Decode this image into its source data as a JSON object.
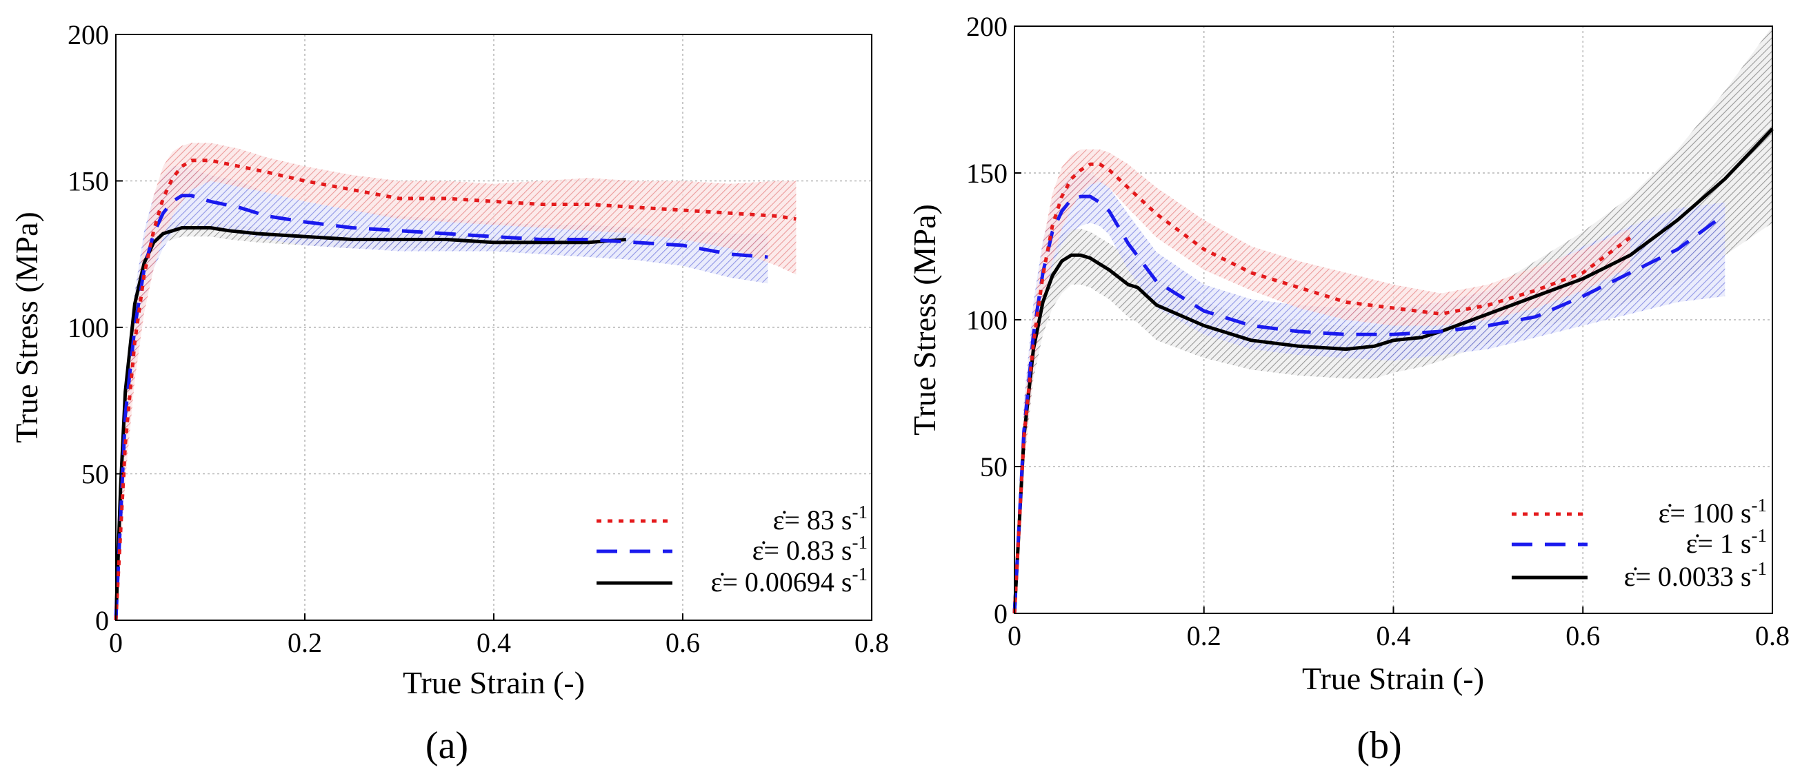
{
  "chart_data": [
    {
      "id": "a",
      "type": "line",
      "panel_label": "(a)",
      "xlabel": "True Strain (-)",
      "ylabel": "True Stress (MPa)",
      "xlim": [
        0,
        0.8
      ],
      "ylim": [
        0,
        200
      ],
      "xticks": [
        0,
        0.2,
        0.4,
        0.6,
        0.8
      ],
      "yticks": [
        0,
        50,
        100,
        150,
        200
      ],
      "xtick_labels": [
        "0",
        "0.2",
        "0.4",
        "0.6",
        "0.8"
      ],
      "ytick_labels": [
        "0",
        "50",
        "100",
        "150",
        "200"
      ],
      "grid": true,
      "legend_position": "lower-right",
      "series": [
        {
          "name": "83",
          "legend_prefix": "ε̇= ",
          "legend_value": "83",
          "legend_unit": "s",
          "legend_exponent": "-1",
          "color": "#e41a1c",
          "band_color": "#f3a0a0",
          "dash": "dotted",
          "x": [
            0,
            0.01,
            0.02,
            0.03,
            0.04,
            0.05,
            0.06,
            0.07,
            0.08,
            0.1,
            0.13,
            0.16,
            0.2,
            0.25,
            0.3,
            0.35,
            0.4,
            0.45,
            0.5,
            0.55,
            0.6,
            0.65,
            0.7,
            0.72
          ],
          "y": [
            0,
            60,
            95,
            118,
            133,
            144,
            151,
            155,
            157,
            157,
            155,
            153,
            150,
            147,
            144,
            144,
            143,
            142,
            142,
            141,
            140,
            139,
            138,
            137
          ],
          "upper": [
            0,
            72,
            108,
            130,
            145,
            155,
            160,
            162,
            163,
            163,
            161,
            158,
            155,
            152,
            150,
            150,
            149,
            150,
            151,
            150,
            150,
            149,
            150,
            150
          ],
          "lower": [
            0,
            48,
            82,
            105,
            120,
            131,
            138,
            143,
            147,
            150,
            148,
            146,
            143,
            140,
            137,
            136,
            135,
            134,
            133,
            132,
            130,
            127,
            121,
            118
          ]
        },
        {
          "name": "0.83",
          "legend_prefix": "ε̇= ",
          "legend_value": "0.83",
          "legend_unit": "s",
          "legend_exponent": "-1",
          "color": "#1a1aee",
          "band_color": "#a9aef0",
          "dash": "dashed",
          "x": [
            0,
            0.01,
            0.02,
            0.03,
            0.04,
            0.05,
            0.06,
            0.07,
            0.08,
            0.1,
            0.13,
            0.16,
            0.2,
            0.25,
            0.3,
            0.35,
            0.4,
            0.45,
            0.5,
            0.55,
            0.6,
            0.65,
            0.69
          ],
          "y": [
            0,
            70,
            100,
            120,
            132,
            139,
            143,
            145,
            145,
            143,
            141,
            138,
            136,
            134,
            133,
            132,
            131,
            130,
            130,
            129,
            128,
            125,
            124
          ],
          "upper": [
            0,
            80,
            112,
            133,
            145,
            152,
            155,
            155,
            154,
            152,
            150,
            146,
            143,
            140,
            138,
            137,
            136,
            135,
            135,
            134,
            133,
            132,
            132
          ],
          "lower": [
            0,
            58,
            88,
            108,
            120,
            127,
            132,
            134,
            135,
            134,
            132,
            130,
            128,
            127,
            126,
            126,
            126,
            125,
            124,
            123,
            121,
            117,
            115
          ]
        },
        {
          "name": "0.00694",
          "legend_prefix": "ε̇= ",
          "legend_value": "0.00694",
          "legend_unit": "s",
          "legend_exponent": "-1",
          "color": "#000000",
          "band_color": "#999999",
          "dash": "solid",
          "x": [
            0,
            0.005,
            0.01,
            0.02,
            0.03,
            0.04,
            0.05,
            0.06,
            0.07,
            0.08,
            0.1,
            0.12,
            0.15,
            0.2,
            0.25,
            0.3,
            0.35,
            0.4,
            0.45,
            0.5,
            0.54
          ],
          "y": [
            0,
            45,
            78,
            108,
            122,
            129,
            132,
            133,
            134,
            134,
            134,
            133,
            132,
            131,
            130,
            130,
            130,
            129,
            129,
            129,
            130
          ],
          "upper": [
            0,
            48,
            82,
            112,
            126,
            132,
            135,
            136,
            136,
            136,
            136,
            135,
            134,
            133,
            132,
            132,
            132,
            131,
            131,
            131,
            132
          ],
          "lower": [
            0,
            42,
            74,
            104,
            118,
            126,
            129,
            130,
            131,
            131,
            131,
            130,
            129,
            128,
            127,
            127,
            127,
            127,
            127,
            127,
            128
          ]
        }
      ]
    },
    {
      "id": "b",
      "type": "line",
      "panel_label": "(b)",
      "xlabel": "True Strain (-)",
      "ylabel": "True Stress (MPa)",
      "xlim": [
        0,
        0.8
      ],
      "ylim": [
        0,
        200
      ],
      "xticks": [
        0,
        0.2,
        0.4,
        0.6,
        0.8
      ],
      "yticks": [
        0,
        50,
        100,
        150,
        200
      ],
      "xtick_labels": [
        "0",
        "0.2",
        "0.4",
        "0.6",
        "0.8"
      ],
      "ytick_labels": [
        "0",
        "50",
        "100",
        "150",
        "200"
      ],
      "grid": true,
      "legend_position": "lower-right",
      "series": [
        {
          "name": "100",
          "legend_prefix": "ε̇= ",
          "legend_value": "100",
          "legend_unit": "s",
          "legend_exponent": "-1",
          "color": "#e41a1c",
          "band_color": "#f3a0a0",
          "dash": "dotted",
          "x": [
            0,
            0.01,
            0.02,
            0.03,
            0.04,
            0.05,
            0.06,
            0.07,
            0.08,
            0.09,
            0.1,
            0.12,
            0.15,
            0.2,
            0.25,
            0.3,
            0.35,
            0.4,
            0.45,
            0.5,
            0.55,
            0.6,
            0.65
          ],
          "y": [
            0,
            60,
            92,
            115,
            132,
            142,
            148,
            151,
            153,
            153,
            151,
            145,
            136,
            124,
            116,
            111,
            106,
            104,
            102,
            105,
            110,
            116,
            128
          ],
          "upper": [
            0,
            70,
            102,
            126,
            143,
            152,
            156,
            158,
            158,
            158,
            157,
            153,
            145,
            134,
            125,
            120,
            116,
            112,
            109,
            112,
            118,
            124,
            131
          ],
          "lower": [
            0,
            50,
            82,
            104,
            120,
            131,
            138,
            143,
            146,
            147,
            145,
            138,
            128,
            117,
            110,
            104,
            100,
            98,
            98,
            100,
            104,
            110,
            118
          ]
        },
        {
          "name": "1",
          "legend_prefix": "ε̇= ",
          "legend_value": "1",
          "legend_unit": "s",
          "legend_exponent": "-1",
          "color": "#1a1aee",
          "band_color": "#a9aef0",
          "dash": "dashed",
          "x": [
            0,
            0.01,
            0.02,
            0.03,
            0.04,
            0.05,
            0.06,
            0.07,
            0.08,
            0.09,
            0.1,
            0.12,
            0.15,
            0.2,
            0.25,
            0.3,
            0.35,
            0.4,
            0.45,
            0.5,
            0.55,
            0.6,
            0.65,
            0.7,
            0.75
          ],
          "y": [
            0,
            62,
            95,
            116,
            130,
            137,
            141,
            142,
            142,
            140,
            137,
            126,
            113,
            103,
            98,
            96,
            95,
            95,
            96,
            98,
            101,
            108,
            116,
            124,
            136
          ],
          "upper": [
            0,
            72,
            106,
            127,
            140,
            147,
            150,
            151,
            150,
            148,
            145,
            136,
            123,
            112,
            107,
            105,
            104,
            104,
            106,
            110,
            117,
            125,
            132,
            138,
            140
          ],
          "lower": [
            0,
            52,
            84,
            104,
            118,
            126,
            130,
            132,
            133,
            132,
            129,
            117,
            104,
            95,
            90,
            88,
            87,
            86,
            88,
            90,
            94,
            98,
            102,
            106,
            108
          ]
        },
        {
          "name": "0.0033",
          "legend_prefix": "ε̇= ",
          "legend_value": "0.0033",
          "legend_unit": "s",
          "legend_exponent": "-1",
          "color": "#000000",
          "band_color": "#8c8c8c",
          "dash": "solid",
          "x": [
            0,
            0.01,
            0.02,
            0.03,
            0.04,
            0.05,
            0.06,
            0.07,
            0.08,
            0.09,
            0.1,
            0.12,
            0.13,
            0.15,
            0.2,
            0.25,
            0.3,
            0.35,
            0.38,
            0.4,
            0.43,
            0.45,
            0.5,
            0.55,
            0.6,
            0.65,
            0.7,
            0.75,
            0.8
          ],
          "y": [
            0,
            60,
            90,
            106,
            115,
            120,
            122,
            122,
            121,
            119,
            117,
            112,
            111,
            105,
            98,
            93,
            91,
            90,
            91,
            93,
            94,
            96,
            102,
            108,
            114,
            122,
            134,
            148,
            165
          ],
          "upper": [
            0,
            70,
            100,
            116,
            124,
            129,
            131,
            131,
            130,
            128,
            126,
            122,
            119,
            114,
            106,
            101,
            99,
            98,
            98,
            99,
            100,
            102,
            110,
            120,
            130,
            142,
            158,
            178,
            200
          ],
          "lower": [
            0,
            50,
            80,
            95,
            104,
            109,
            112,
            112,
            111,
            109,
            107,
            101,
            99,
            93,
            87,
            83,
            81,
            80,
            80,
            82,
            84,
            86,
            92,
            97,
            101,
            106,
            112,
            122,
            133
          ]
        }
      ]
    }
  ]
}
